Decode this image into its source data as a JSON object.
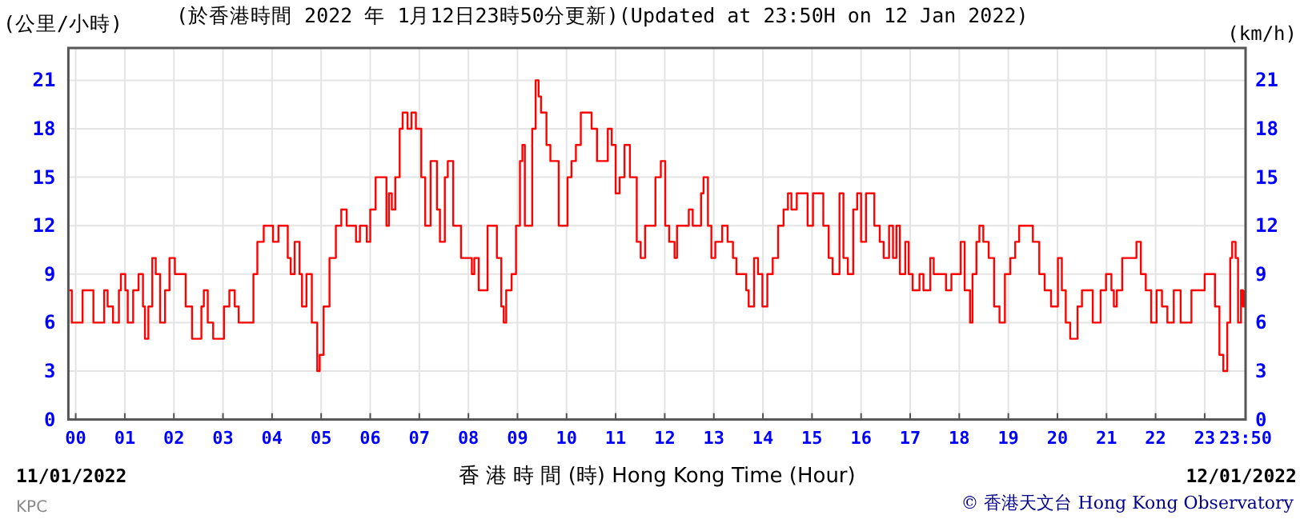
{
  "chart_data": {
    "type": "step",
    "title": "(於香港時間 2022 年 1月12日23時50分更新)(Updated at 23:50H on 12 Jan 2022)",
    "ylabel": "(公里/小時)",
    "y2label": "(km/h)",
    "xlabel": "香 港 時 間 (時) Hong Kong Time (Hour)",
    "annotations": [
      "11/01/2022",
      "12/01/2022",
      "KPC",
      "© 香港天文台 Hong Kong Observatory"
    ],
    "xlim": [
      -0.15,
      23.833
    ],
    "xticks": [
      {
        "value": 0,
        "label": "00"
      },
      {
        "value": 1,
        "label": "01"
      },
      {
        "value": 2,
        "label": "02"
      },
      {
        "value": 3,
        "label": "03"
      },
      {
        "value": 4,
        "label": "04"
      },
      {
        "value": 5,
        "label": "05"
      },
      {
        "value": 6,
        "label": "06"
      },
      {
        "value": 7,
        "label": "07"
      },
      {
        "value": 8,
        "label": "08"
      },
      {
        "value": 9,
        "label": "09"
      },
      {
        "value": 10,
        "label": "10"
      },
      {
        "value": 11,
        "label": "11"
      },
      {
        "value": 12,
        "label": "12"
      },
      {
        "value": 13,
        "label": "13"
      },
      {
        "value": 14,
        "label": "14"
      },
      {
        "value": 15,
        "label": "15"
      },
      {
        "value": 16,
        "label": "16"
      },
      {
        "value": 17,
        "label": "17"
      },
      {
        "value": 18,
        "label": "18"
      },
      {
        "value": 19,
        "label": "19"
      },
      {
        "value": 20,
        "label": "20"
      },
      {
        "value": 21,
        "label": "21"
      },
      {
        "value": 22,
        "label": "22"
      },
      {
        "value": 23,
        "label": "23"
      },
      {
        "value": 23.833,
        "label": "23:50"
      }
    ],
    "ylim": [
      0,
      23
    ],
    "yticks": [
      0,
      3,
      6,
      9,
      12,
      15,
      18,
      21
    ],
    "y2lim": [
      0,
      23
    ],
    "y2ticks": [
      0,
      3,
      6,
      9,
      12,
      15,
      18,
      21
    ],
    "grid": true,
    "series": [
      {
        "color": "#ff0000",
        "x": [
          -0.13,
          -0.08,
          0.03,
          0.14,
          0.25,
          0.36,
          0.47,
          0.58,
          0.65,
          0.76,
          0.88,
          0.92,
          1.01,
          1.06,
          1.17,
          1.28,
          1.37,
          1.41,
          1.48,
          1.56,
          1.63,
          1.72,
          1.82,
          1.91,
          2.02,
          2.13,
          2.24,
          2.37,
          2.48,
          2.56,
          2.61,
          2.69,
          2.8,
          2.91,
          3.02,
          3.13,
          3.24,
          3.32,
          3.43,
          3.54,
          3.62,
          3.7,
          3.83,
          3.97,
          4.02,
          4.13,
          4.23,
          4.32,
          4.38,
          4.46,
          4.56,
          4.61,
          4.7,
          4.81,
          4.92,
          4.97,
          5.05,
          5.17,
          5.3,
          5.41,
          5.52,
          5.62,
          5.71,
          5.79,
          5.93,
          6.0,
          6.11,
          6.22,
          6.33,
          6.38,
          6.44,
          6.51,
          6.6,
          6.66,
          6.76,
          6.84,
          6.93,
          7.04,
          7.12,
          7.23,
          7.36,
          7.42,
          7.52,
          7.58,
          7.69,
          7.85,
          7.91,
          8.01,
          8.07,
          8.12,
          8.21,
          8.32,
          8.39,
          8.5,
          8.58,
          8.67,
          8.72,
          8.77,
          8.88,
          8.97,
          9.05,
          9.1,
          9.15,
          9.23,
          9.3,
          9.37,
          9.43,
          9.48,
          9.59,
          9.67,
          9.75,
          9.84,
          9.95,
          10.02,
          10.1,
          10.19,
          10.29,
          10.4,
          10.51,
          10.62,
          10.73,
          10.84,
          10.92,
          11.0,
          11.08,
          11.18,
          11.29,
          11.43,
          11.51,
          11.6,
          11.71,
          11.81,
          11.92,
          12.01,
          12.09,
          12.2,
          12.25,
          12.41,
          12.49,
          12.57,
          12.74,
          12.79,
          12.88,
          12.95,
          13.03,
          13.17,
          13.28,
          13.39,
          13.46,
          13.55,
          13.66,
          13.71,
          13.82,
          13.9,
          13.99,
          14.09,
          14.2,
          14.31,
          14.42,
          14.51,
          14.58,
          14.69,
          14.8,
          14.91,
          15.02,
          15.13,
          15.23,
          15.34,
          15.42,
          15.56,
          15.64,
          15.73,
          15.84,
          15.92,
          16.0,
          16.1,
          16.18,
          16.27,
          16.38,
          16.46,
          16.57,
          16.65,
          16.72,
          16.79,
          16.9,
          16.97,
          17.05,
          17.19,
          17.27,
          17.41,
          17.48,
          17.62,
          17.73,
          17.84,
          17.95,
          18.03,
          18.11,
          18.22,
          18.27,
          18.35,
          18.41,
          18.49,
          18.6,
          18.71,
          18.82,
          18.93,
          19.04,
          19.14,
          19.22,
          19.36,
          19.5,
          19.63,
          19.74,
          19.87,
          20.01,
          20.09,
          20.17,
          20.26,
          20.33,
          20.41,
          20.5,
          20.66,
          20.72,
          20.83,
          20.88,
          20.99,
          21.1,
          21.15,
          21.21,
          21.32,
          21.48,
          21.61,
          21.7,
          21.8,
          21.91,
          22.02,
          22.13,
          22.24,
          22.37,
          22.46,
          22.51,
          22.62,
          22.73,
          22.89,
          23.0,
          23.11,
          23.21,
          23.3,
          23.38,
          23.46,
          23.52,
          23.56,
          23.63,
          23.68,
          23.74,
          23.78,
          23.81
        ],
        "values": [
          8,
          6,
          6,
          8,
          8,
          6,
          6,
          8,
          7,
          6,
          8,
          9,
          8,
          6,
          8,
          9,
          7,
          5,
          7,
          10,
          9,
          6,
          8,
          10,
          9,
          9,
          7,
          5,
          5,
          7,
          8,
          6,
          5,
          5,
          7,
          8,
          7,
          6,
          6,
          6,
          9,
          11,
          12,
          12,
          11,
          12,
          12,
          10,
          9,
          11,
          9,
          7,
          9,
          6,
          3,
          4,
          7,
          10,
          12,
          13,
          12,
          12,
          11,
          12,
          11,
          13,
          15,
          15,
          12,
          14,
          13,
          15,
          18,
          19,
          18,
          19,
          18,
          15,
          12,
          16,
          13,
          11,
          15,
          16,
          12,
          10,
          10,
          10,
          9,
          10,
          8,
          8,
          12,
          12,
          10,
          7,
          6,
          8,
          9,
          12,
          16,
          17,
          12,
          12,
          18,
          21,
          20,
          19,
          17,
          16,
          16,
          12,
          12,
          15,
          16,
          17,
          19,
          19,
          18,
          16,
          16,
          18,
          17,
          14,
          15,
          17,
          15,
          11,
          10,
          12,
          12,
          15,
          16,
          12,
          11,
          10,
          12,
          12,
          13,
          12,
          14,
          15,
          12,
          10,
          11,
          12,
          11,
          10,
          9,
          9,
          8,
          7,
          10,
          9,
          7,
          9,
          10,
          12,
          13,
          14,
          13,
          14,
          14,
          12,
          14,
          14,
          12,
          10,
          9,
          14,
          10,
          9,
          13,
          14,
          11,
          14,
          14,
          12,
          11,
          10,
          12,
          10,
          12,
          9,
          11,
          9,
          8,
          9,
          8,
          10,
          9,
          9,
          8,
          9,
          9,
          11,
          8,
          6,
          9,
          11,
          12,
          11,
          10,
          7,
          6,
          9,
          10,
          11,
          12,
          12,
          11,
          9,
          8,
          7,
          10,
          8,
          6,
          5,
          5,
          7,
          8,
          8,
          6,
          6,
          8,
          9,
          8,
          7,
          8,
          10,
          10,
          11,
          9,
          8,
          6,
          8,
          7,
          6,
          8,
          8,
          6,
          6,
          8,
          8,
          9,
          9,
          7,
          4,
          3,
          6,
          10,
          11,
          10,
          6,
          8,
          7,
          8
        ]
      }
    ]
  }
}
